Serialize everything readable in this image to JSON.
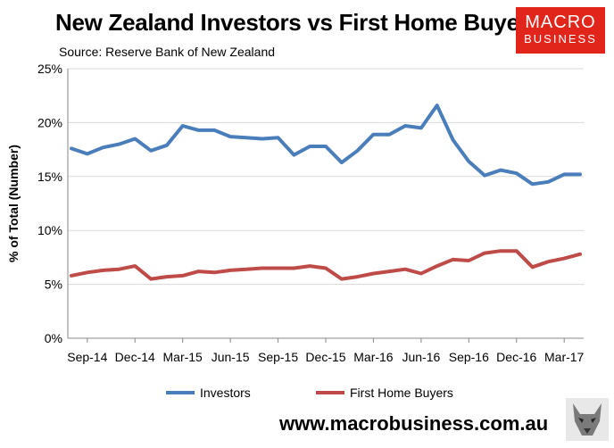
{
  "header": {
    "title": "New Zealand Investors vs First Home Buyers",
    "source": "Source: Reserve Bank of New Zealand",
    "logo_line1": "MACRO",
    "logo_line2": "BUSINESS",
    "logo_color": "#e1251b"
  },
  "footer": {
    "url": "www.macrobusiness.com.au",
    "wolf_icon": "wolf-logo-icon"
  },
  "chart_data": {
    "type": "line",
    "title": "New Zealand Investors vs First Home Buyers",
    "ylabel": "% of Total (Number)",
    "xlabel": "",
    "ylim": [
      0,
      25
    ],
    "y_ticks": [
      "0%",
      "5%",
      "10%",
      "15%",
      "20%",
      "25%"
    ],
    "x_tick_labels": [
      "Sep-14",
      "Dec-14",
      "Mar-15",
      "Jun-15",
      "Sep-15",
      "Dec-15",
      "Mar-16",
      "Jun-16",
      "Sep-16",
      "Dec-16",
      "Mar-17"
    ],
    "x": [
      "Aug-14",
      "Sep-14",
      "Oct-14",
      "Nov-14",
      "Dec-14",
      "Jan-15",
      "Feb-15",
      "Mar-15",
      "Apr-15",
      "May-15",
      "Jun-15",
      "Jul-15",
      "Aug-15",
      "Sep-15",
      "Oct-15",
      "Nov-15",
      "Dec-15",
      "Jan-16",
      "Feb-16",
      "Mar-16",
      "Apr-16",
      "May-16",
      "Jun-16",
      "Jul-16",
      "Aug-16",
      "Sep-16",
      "Oct-16",
      "Nov-16",
      "Dec-16",
      "Jan-17",
      "Feb-17",
      "Mar-17",
      "Apr-17"
    ],
    "grid": true,
    "legend_position": "bottom",
    "series": [
      {
        "name": "Investors",
        "color": "#4a7ebb",
        "values": [
          17.6,
          17.1,
          17.7,
          18.0,
          18.5,
          17.4,
          17.9,
          19.7,
          19.3,
          19.3,
          18.7,
          18.6,
          18.5,
          18.6,
          17.0,
          17.8,
          17.8,
          16.3,
          17.4,
          18.9,
          18.9,
          19.7,
          19.5,
          21.6,
          18.4,
          16.4,
          15.1,
          15.6,
          15.3,
          14.3,
          14.5,
          15.2,
          15.2
        ]
      },
      {
        "name": "First Home Buyers",
        "color": "#be4b48",
        "values": [
          5.8,
          6.1,
          6.3,
          6.4,
          6.7,
          5.5,
          5.7,
          5.8,
          6.2,
          6.1,
          6.3,
          6.4,
          6.5,
          6.5,
          6.5,
          6.7,
          6.5,
          5.5,
          5.7,
          6.0,
          6.2,
          6.4,
          6.0,
          6.7,
          7.3,
          7.2,
          7.9,
          8.1,
          8.1,
          6.6,
          7.1,
          7.4,
          7.8
        ]
      }
    ]
  }
}
